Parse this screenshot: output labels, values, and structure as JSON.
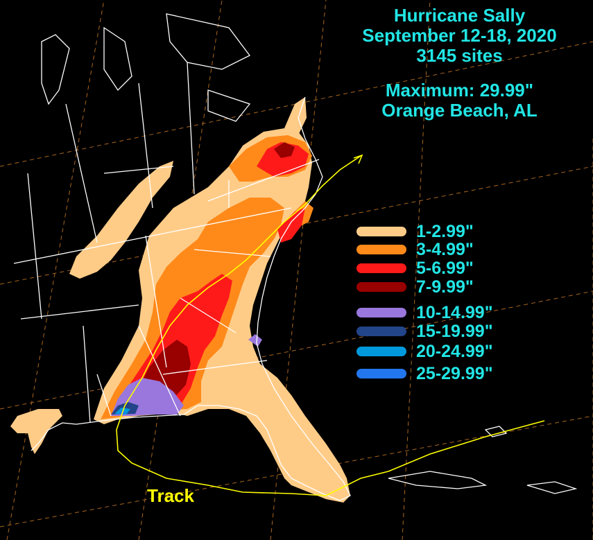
{
  "title": {
    "line1": "Hurricane Sally",
    "line2": "September 12-18, 2020",
    "line3": "3145 sites",
    "line4": "Maximum: 29.99\"",
    "line5": "Orange Beach, AL"
  },
  "legend": [
    {
      "label": "1-2.99\"",
      "color": "#ffcc88"
    },
    {
      "label": "3-4.99\"",
      "color": "#ff8a1a"
    },
    {
      "label": "5-6.99\"",
      "color": "#ff1a1a"
    },
    {
      "label": "7-9.99\"",
      "color": "#990000"
    },
    {
      "label": "10-14.99\"",
      "color": "#9977dd"
    },
    {
      "label": "15-19.99\"",
      "color": "#224488"
    },
    {
      "label": "20-24.99\"",
      "color": "#0099dd"
    },
    {
      "label": "25-29.99\"",
      "color": "#2277ee"
    }
  ],
  "track_label": "Track",
  "colors": {
    "background": "#000000",
    "boundaries": "#ffffff",
    "text": "#22e5e5",
    "track": "#ffff00",
    "graticule": "#c87828"
  }
}
